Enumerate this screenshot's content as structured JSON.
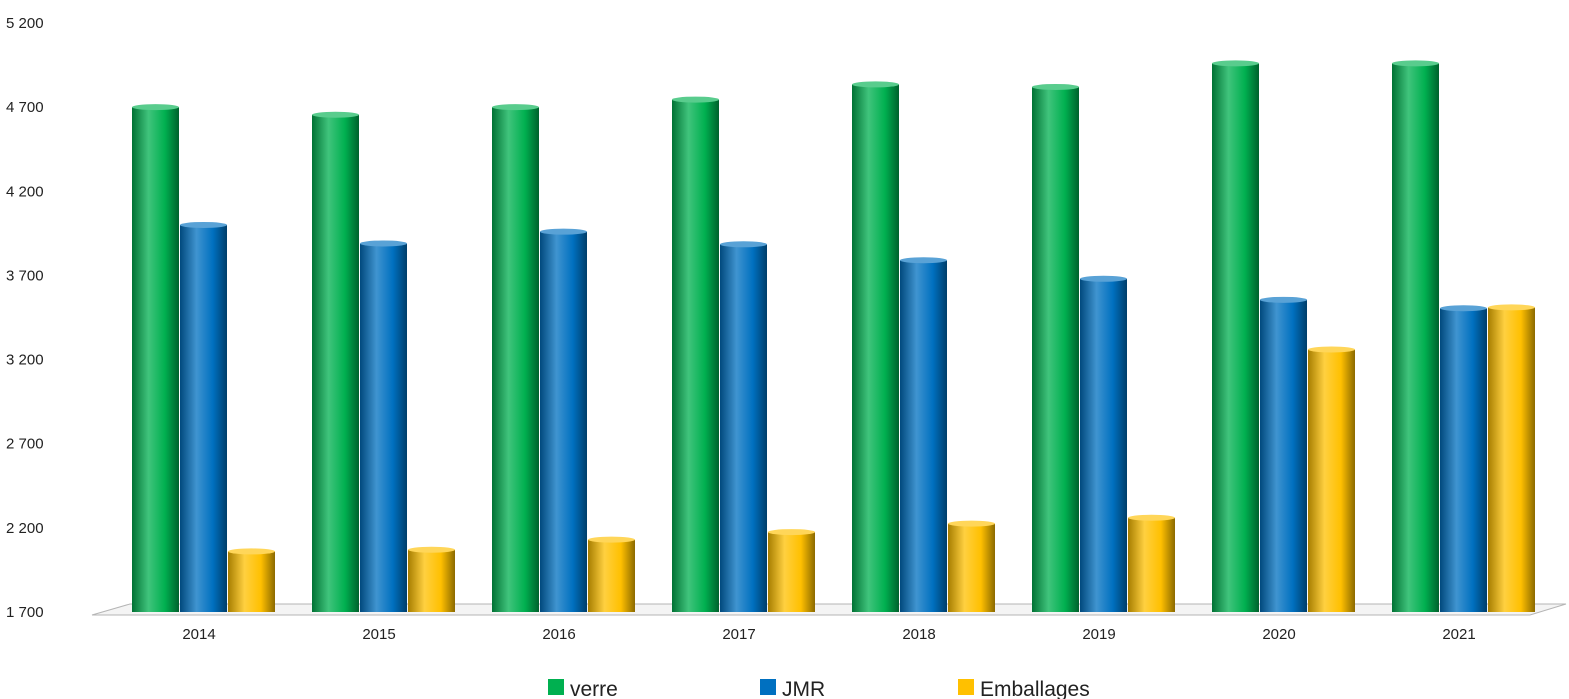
{
  "chart_data": {
    "type": "bar",
    "categories": [
      "2014",
      "2015",
      "2016",
      "2017",
      "2018",
      "2019",
      "2020",
      "2021"
    ],
    "series": [
      {
        "name": "verre",
        "color": "#00b050",
        "values": [
          4700,
          4655,
          4700,
          4745,
          4835,
          4820,
          4960,
          4960
        ]
      },
      {
        "name": "JMR",
        "color": "#0070c0",
        "values": [
          4000,
          3890,
          3960,
          3885,
          3790,
          3680,
          3555,
          3505
        ]
      },
      {
        "name": "Emballages",
        "color": "#ffc000",
        "values": [
          2060,
          2070,
          2130,
          2175,
          2225,
          2260,
          3260,
          3510
        ]
      }
    ],
    "ylim": [
      1700,
      5200
    ],
    "yticks": [
      1700,
      2200,
      2700,
      3200,
      3700,
      4200,
      4700,
      5200
    ],
    "ytick_labels": [
      "1 700",
      "2 200",
      "2 700",
      "3 200",
      "3 700",
      "4 200",
      "4 700",
      "5 200"
    ],
    "legend_position": "bottom",
    "grid": false,
    "style": "3d-cylinder-bars"
  }
}
